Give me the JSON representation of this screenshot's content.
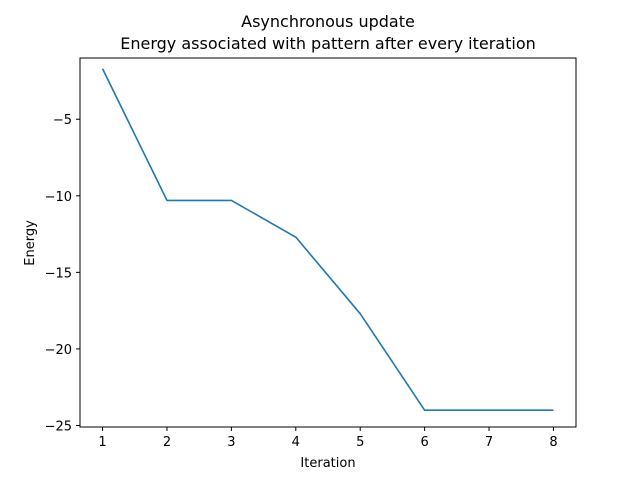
{
  "chart_data": {
    "type": "line",
    "title": "Asynchronous update",
    "subtitle": "Energy associated with pattern after every iteration",
    "xlabel": "Iteration",
    "ylabel": "Energy",
    "x": [
      1,
      2,
      3,
      4,
      5,
      6,
      7,
      8
    ],
    "series": [
      {
        "values": [
          -1.7,
          -10.3,
          -10.3,
          -12.7,
          -17.7,
          -24.0,
          -24.0,
          -24.0
        ],
        "color": "#1f77b4"
      }
    ],
    "xlim": [
      0.65,
      8.35
    ],
    "ylim": [
      -25.1,
      -1.0
    ],
    "xticks": [
      1,
      2,
      3,
      4,
      5,
      6,
      7,
      8
    ],
    "yticks": [
      -5,
      -10,
      -15,
      -20,
      -25
    ],
    "ytick_labels": [
      "−5",
      "−10",
      "−15",
      "−20",
      "−25"
    ],
    "grid": false,
    "legend": "none"
  }
}
